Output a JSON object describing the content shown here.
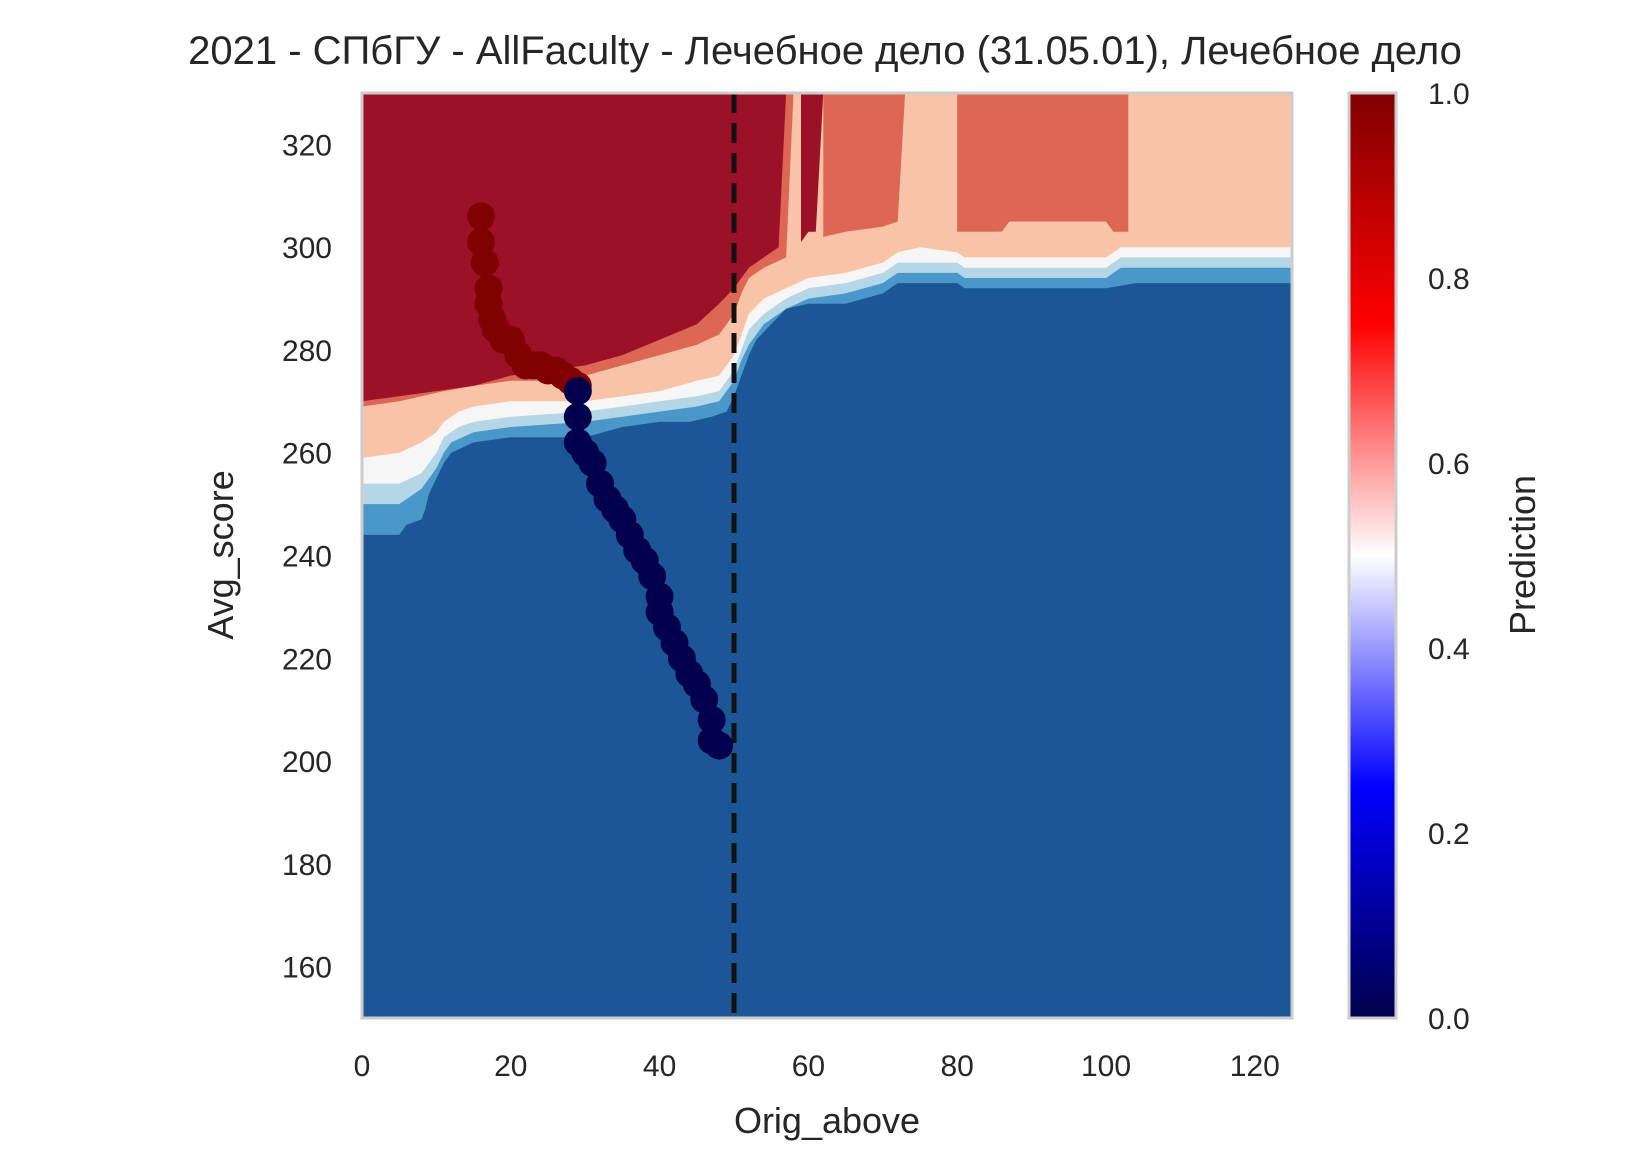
{
  "chart_data": {
    "type": "heatmap",
    "title": "2021 - СПбГУ - AllFaculty - Лечебное дело (31.05.01), Лечебное дело",
    "xlabel": "Orig_above",
    "ylabel": "Avg_score",
    "xlim": [
      0,
      125
    ],
    "ylim": [
      150,
      330
    ],
    "x_ticks": [
      0,
      20,
      40,
      60,
      80,
      100,
      120
    ],
    "y_ticks": [
      160,
      180,
      200,
      220,
      240,
      260,
      280,
      300,
      320
    ],
    "colorbar": {
      "label": "Prediction",
      "range": [
        0,
        1
      ],
      "ticks": [
        "0.0",
        "0.2",
        "0.4",
        "0.6",
        "0.8",
        "1.0"
      ],
      "colormap": "seismic"
    },
    "contour_levels": [
      {
        "level": "0.0-0.2",
        "color": "#1b5797"
      },
      {
        "level": "0.2-0.3",
        "color": "#4a97c9"
      },
      {
        "level": "0.3-0.4",
        "color": "#b4d6e6"
      },
      {
        "level": "0.4-0.6",
        "color": "#f6f6f6"
      },
      {
        "level": "0.6-0.7",
        "color": "#f8c3a6"
      },
      {
        "level": "0.7-0.8",
        "color": "#dd6754"
      },
      {
        "level": "0.8-1.0",
        "color": "#9c1127"
      }
    ],
    "vertical_line": {
      "x": 50,
      "style": "dashed",
      "color": "#111111"
    },
    "series": [
      {
        "color": "#800000",
        "x": [
          16,
          16,
          16.5,
          17,
          17,
          17.5,
          18,
          19,
          20,
          21,
          22,
          23,
          24,
          25,
          26,
          27,
          28,
          29
        ],
        "y": [
          306,
          301,
          297,
          292,
          289,
          286,
          284,
          282,
          282,
          279,
          277,
          277,
          277,
          276,
          276,
          275,
          274,
          273
        ]
      },
      {
        "color": "#00004c",
        "x": [
          29,
          29,
          29,
          30,
          31,
          32,
          33,
          34,
          35,
          36,
          37,
          38,
          39,
          40,
          40,
          41,
          42,
          43,
          44,
          45,
          46,
          47,
          47,
          48
        ],
        "y": [
          272,
          267,
          262,
          260,
          258,
          254,
          251,
          249,
          247,
          244,
          241,
          239,
          236,
          232,
          229,
          226,
          223,
          220,
          217,
          215,
          212,
          208,
          204,
          203
        ]
      }
    ]
  }
}
